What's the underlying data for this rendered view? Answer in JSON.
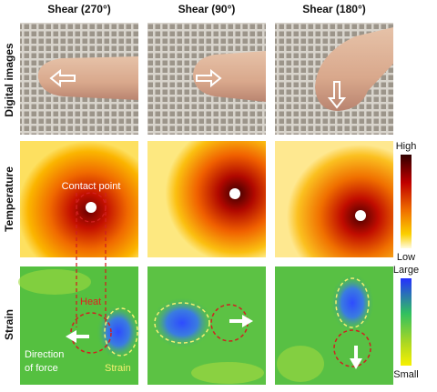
{
  "columns": [
    "Shear (270°)",
    "Shear (90°)",
    "Shear (180°)"
  ],
  "rows": [
    "Digital images",
    "Temperature",
    "Strain"
  ],
  "temperature_scale": {
    "high": "High",
    "low": "Low"
  },
  "strain_scale": {
    "high": "Large",
    "low": "Small"
  },
  "annotations": {
    "contact_point": "Contact point",
    "heat": "Heat",
    "strain": "Strain",
    "direction_of_force": [
      "Direction",
      "of force"
    ]
  }
}
